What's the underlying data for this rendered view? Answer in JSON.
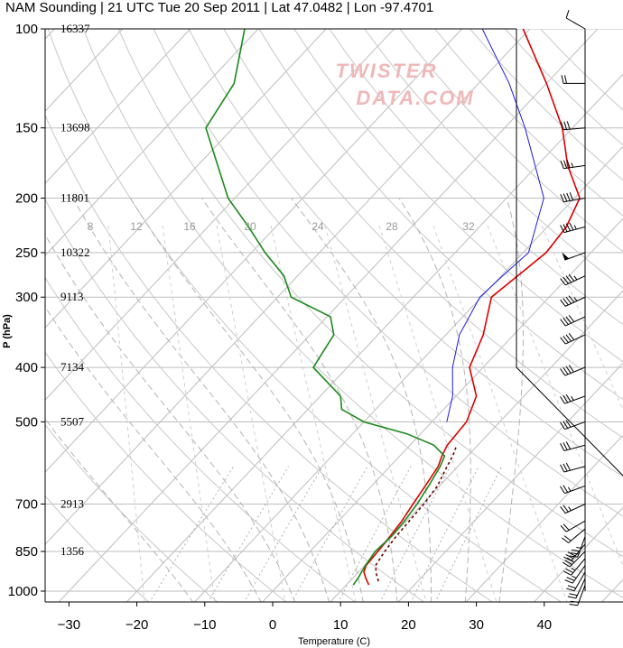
{
  "title": "NAM Sounding | 21 UTC Tue 20 Sep 2011 | Lat 47.0482 | Lon -97.4701",
  "watermark": [
    "TWISTER",
    "DATA.COM"
  ],
  "chart_data": {
    "type": "line",
    "chart_kind": "skew-t log-p sounding",
    "xlabel": "Temperature (C)",
    "ylabel": "P (hPa)",
    "x_ticks": [
      -30,
      -20,
      -10,
      0,
      10,
      20,
      30,
      40
    ],
    "y_ticks": [
      100,
      150,
      200,
      250,
      300,
      400,
      500,
      700,
      850,
      1000
    ],
    "y_scale": "log",
    "ylim": [
      1000,
      100
    ],
    "heights": [
      {
        "p": 100,
        "label": "16337"
      },
      {
        "p": 150,
        "label": "13698"
      },
      {
        "p": 200,
        "label": "11801"
      },
      {
        "p": 250,
        "label": "10322"
      },
      {
        "p": 300,
        "label": "9113"
      },
      {
        "p": 400,
        "label": "7134"
      },
      {
        "p": 500,
        "label": "5507"
      },
      {
        "p": 700,
        "label": "2913"
      },
      {
        "p": 850,
        "label": "1356"
      }
    ],
    "mixing_ratio_labels": [
      "8",
      "12",
      "16",
      "20",
      "24",
      "28",
      "32"
    ],
    "series": [
      {
        "color": "#dd0000",
        "points": [
          [
            975,
            13.3
          ],
          [
            950,
            12.0
          ],
          [
            925,
            10.8
          ],
          [
            900,
            10.2
          ],
          [
            850,
            10.0
          ],
          [
            800,
            9.7
          ],
          [
            750,
            9.3
          ],
          [
            700,
            8.6
          ],
          [
            650,
            7.9
          ],
          [
            600,
            7.1
          ],
          [
            575,
            6.2
          ],
          [
            550,
            5.5
          ],
          [
            500,
            5.1
          ],
          [
            450,
            3.0
          ],
          [
            400,
            -2.0
          ],
          [
            350,
            -4.5
          ],
          [
            300,
            -8.5
          ],
          [
            275,
            -7.6
          ],
          [
            250,
            -6.6
          ],
          [
            225,
            -7.2
          ],
          [
            200,
            -9.2
          ],
          [
            175,
            -15.5
          ],
          [
            150,
            -21.5
          ],
          [
            125,
            -30.0
          ],
          [
            100,
            -41.0
          ]
        ]
      },
      {
        "color": "#1c1ce0",
        "points": [
          [
            500,
            2.2
          ],
          [
            450,
            -0.5
          ],
          [
            400,
            -4.5
          ],
          [
            350,
            -8.0
          ],
          [
            300,
            -10.2
          ],
          [
            275,
            -9.8
          ],
          [
            250,
            -9.2
          ],
          [
            200,
            -14.5
          ],
          [
            150,
            -27.0
          ],
          [
            125,
            -35.5
          ],
          [
            100,
            -47.0
          ]
        ]
      },
      {
        "color": "#6b0000",
        "style": "dotted",
        "points": [
          [
            960,
            14.2
          ],
          [
            930,
            12.8
          ],
          [
            900,
            11.6
          ],
          [
            850,
            11.0
          ],
          [
            800,
            10.6
          ],
          [
            750,
            10.4
          ],
          [
            700,
            10.2
          ],
          [
            650,
            9.7
          ],
          [
            600,
            8.4
          ],
          [
            575,
            7.8
          ],
          [
            550,
            6.9
          ]
        ]
      },
      {
        "color": "#1a8a1a",
        "points": [
          [
            975,
            11.0
          ],
          [
            950,
            10.8
          ],
          [
            900,
            10.1
          ],
          [
            850,
            9.6
          ],
          [
            800,
            9.9
          ],
          [
            750,
            9.7
          ],
          [
            700,
            9.2
          ],
          [
            650,
            8.4
          ],
          [
            600,
            7.4
          ],
          [
            575,
            6.6
          ],
          [
            550,
            3.5
          ],
          [
            525,
            -2.0
          ],
          [
            500,
            -10.0
          ],
          [
            475,
            -15.0
          ],
          [
            450,
            -17.0
          ],
          [
            400,
            -25.0
          ],
          [
            350,
            -26.5
          ],
          [
            325,
            -29.5
          ],
          [
            300,
            -38.0
          ],
          [
            275,
            -42.0
          ],
          [
            250,
            -48.0
          ],
          [
            225,
            -54.0
          ],
          [
            200,
            -61.0
          ],
          [
            150,
            -74.0
          ],
          [
            125,
            -76.0
          ],
          [
            100,
            -82.0
          ]
        ]
      }
    ],
    "wind_barbs": [
      {
        "p": 975,
        "dir": 200,
        "kt": 20
      },
      {
        "p": 950,
        "dir": 205,
        "kt": 20
      },
      {
        "p": 925,
        "dir": 210,
        "kt": 20
      },
      {
        "p": 900,
        "dir": 215,
        "kt": 25
      },
      {
        "p": 875,
        "dir": 220,
        "kt": 25
      },
      {
        "p": 850,
        "dir": 225,
        "kt": 30
      },
      {
        "p": 825,
        "dir": 220,
        "kt": 30
      },
      {
        "p": 800,
        "dir": 200,
        "kt": 35
      },
      {
        "p": 775,
        "dir": 230,
        "kt": 20
      },
      {
        "p": 750,
        "dir": 240,
        "kt": 20
      },
      {
        "p": 700,
        "dir": 245,
        "kt": 25
      },
      {
        "p": 650,
        "dir": 250,
        "kt": 25
      },
      {
        "p": 600,
        "dir": 255,
        "kt": 30
      },
      {
        "p": 550,
        "dir": 255,
        "kt": 30
      },
      {
        "p": 500,
        "dir": 250,
        "kt": 30
      },
      {
        "p": 450,
        "dir": 250,
        "kt": 35
      },
      {
        "p": 400,
        "dir": 248,
        "kt": 40
      },
      {
        "p": 350,
        "dir": 245,
        "kt": 40
      },
      {
        "p": 325,
        "dir": 245,
        "kt": 40
      },
      {
        "p": 300,
        "dir": 245,
        "kt": 45
      },
      {
        "p": 275,
        "dir": 245,
        "kt": 45
      },
      {
        "p": 250,
        "dir": 250,
        "kt": 50
      },
      {
        "p": 225,
        "dir": 255,
        "kt": 45
      },
      {
        "p": 200,
        "dir": 260,
        "kt": 40
      },
      {
        "p": 175,
        "dir": 262,
        "kt": 35
      },
      {
        "p": 150,
        "dir": 265,
        "kt": 30
      },
      {
        "p": 125,
        "dir": 270,
        "kt": 20
      },
      {
        "p": 100,
        "dir": 300,
        "kt": 10
      }
    ]
  }
}
